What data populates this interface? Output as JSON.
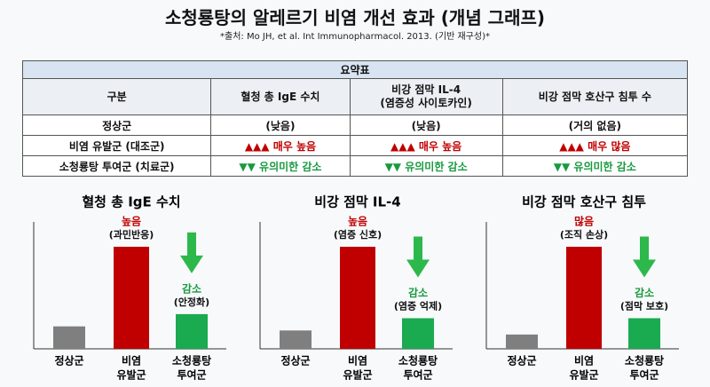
{
  "header": {
    "title": "소청룡탕의 알레르기 비염 개선 효과 (개념 그래프)",
    "subtitle": "*출처: Mo JH, et al. Int Immunopharmacol. 2013. (기반 재구성)*"
  },
  "table": {
    "title": "요약표",
    "columns": [
      [
        "구분"
      ],
      [
        "혈청 총 IgE 수치"
      ],
      [
        "비강 점막 IL-4",
        "(염증성 사이토카인)"
      ],
      [
        "비강 점막 호산구 침투 수"
      ]
    ],
    "rows": [
      [
        "정상군",
        "(낮음)",
        "(낮음)",
        "(거의 없음)"
      ],
      [
        "비염 유발군 (대조군)",
        "▲▲▲ 매우 높음",
        "▲▲▲ 매우 높음",
        "▲▲▲ 매우 많음"
      ],
      [
        "소청룡탕 투여군 (치료군)",
        "▼▼ 유의미한 감소",
        "▼▼ 유의미한 감소",
        "▼▼ 유의미한 감소"
      ]
    ],
    "row_colors": [
      "#111111",
      "#c00000",
      "#1a9a40"
    ]
  },
  "chart_data": [
    {
      "type": "bar",
      "title": "혈청 총 IgE 수치",
      "categories": [
        [
          "정상군"
        ],
        [
          "비염",
          "유발군"
        ],
        [
          "소청룡탕",
          "투여군"
        ]
      ],
      "values": [
        22,
        100,
        34
      ],
      "colors": [
        "#7f7f7f",
        "#c00000",
        "#1aaa50"
      ],
      "ylim": [
        0,
        120
      ],
      "annotations": [
        null,
        {
          "text": "높음",
          "note": "(과민반응)",
          "color": "#c00000"
        },
        {
          "text": "감소",
          "note": "(안정화)",
          "color": "#1a9a40"
        }
      ]
    },
    {
      "type": "bar",
      "title": "비강 점막 IL-4",
      "categories": [
        [
          "정상군"
        ],
        [
          "비염",
          "유발군"
        ],
        [
          "소청룡탕",
          "투여군"
        ]
      ],
      "values": [
        18,
        100,
        30
      ],
      "colors": [
        "#7f7f7f",
        "#c00000",
        "#1aaa50"
      ],
      "ylim": [
        0,
        120
      ],
      "annotations": [
        null,
        {
          "text": "높음",
          "note": "(염증 신호)",
          "color": "#c00000"
        },
        {
          "text": "감소",
          "note": "(염증 억제)",
          "color": "#1a9a40"
        }
      ]
    },
    {
      "type": "bar",
      "title": "비강 점막 호산구 침투",
      "categories": [
        [
          "정상군"
        ],
        [
          "비염",
          "유발군"
        ],
        [
          "소청룡탕",
          "투여군"
        ]
      ],
      "values": [
        14,
        100,
        30
      ],
      "colors": [
        "#7f7f7f",
        "#c00000",
        "#1aaa50"
      ],
      "ylim": [
        0,
        120
      ],
      "annotations": [
        null,
        {
          "text": "많음",
          "note": "(조직 손상)",
          "color": "#c00000"
        },
        {
          "text": "감소",
          "note": "(점막 보호)",
          "color": "#1a9a40"
        }
      ]
    }
  ]
}
